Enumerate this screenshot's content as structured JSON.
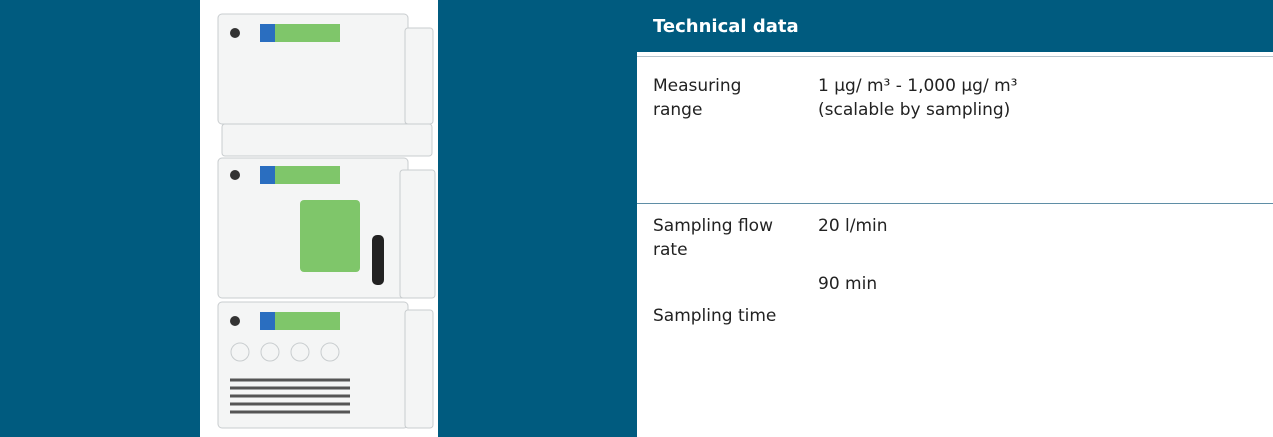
{
  "header": {
    "title": "Technical data"
  },
  "table": {
    "rows": [
      {
        "labels": [
          "Measuring range"
        ],
        "values": [
          "1 µg/ m³ - 1,000 µg/ m³ (scalable by sampling)"
        ]
      },
      {
        "labels": [
          "Sampling flow rate",
          "Sampling time"
        ],
        "values": [
          "20 l/min",
          "90 min"
        ]
      }
    ]
  }
}
